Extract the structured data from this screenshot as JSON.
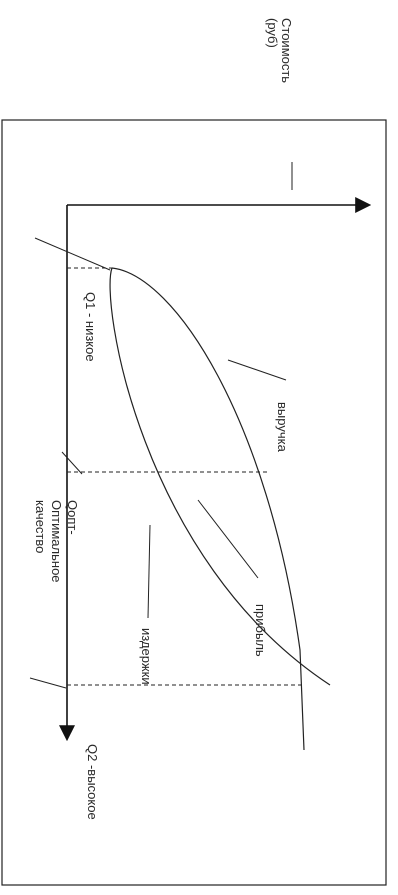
{
  "diagram": {
    "y_axis_title_line1": "Стоимость",
    "y_axis_title_line2": "(руб)",
    "label_q1": "Q1 - низкое",
    "label_qopt_line1": "Qопт-",
    "label_qopt_line2": "Оптимальное",
    "label_qopt_line3": "качество",
    "label_q2": "Q2 -высокое",
    "label_revenue": "выручка",
    "label_profit": "прибыль",
    "label_costs": "издержки"
  }
}
